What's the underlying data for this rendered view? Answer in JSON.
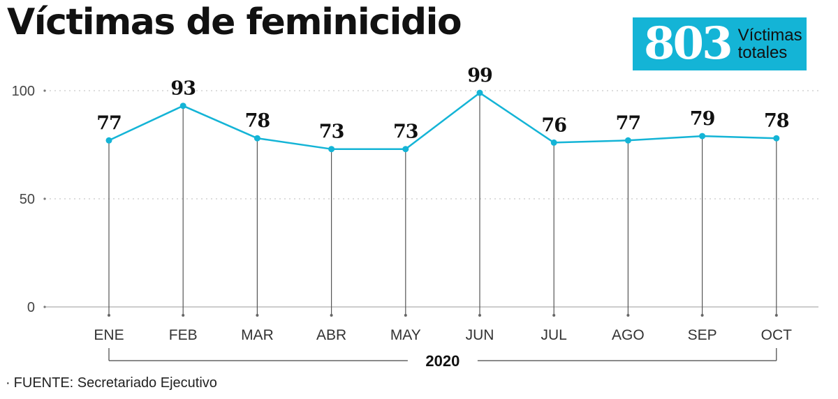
{
  "header": {
    "title": "Víctimas de feminicidio"
  },
  "total": {
    "number": "803",
    "label": "Víctimas totales"
  },
  "colors": {
    "accent": "#14b4d6",
    "line": "#14b4d6",
    "stem": "#555555",
    "grid": "#bbbbbb",
    "text": "#111111"
  },
  "chart_data": {
    "type": "line",
    "categories": [
      "ENE",
      "FEB",
      "MAR",
      "ABR",
      "MAY",
      "JUN",
      "JUL",
      "AGO",
      "SEP",
      "OCT"
    ],
    "values": [
      77,
      93,
      78,
      73,
      73,
      99,
      76,
      77,
      79,
      78
    ],
    "yticks": [
      0,
      50,
      100
    ],
    "ylim": [
      0,
      100
    ],
    "grid": true,
    "xgroup_label": "2020"
  },
  "source": {
    "bullet": "·",
    "text": "FUENTE: Secretariado Ejecutivo"
  }
}
